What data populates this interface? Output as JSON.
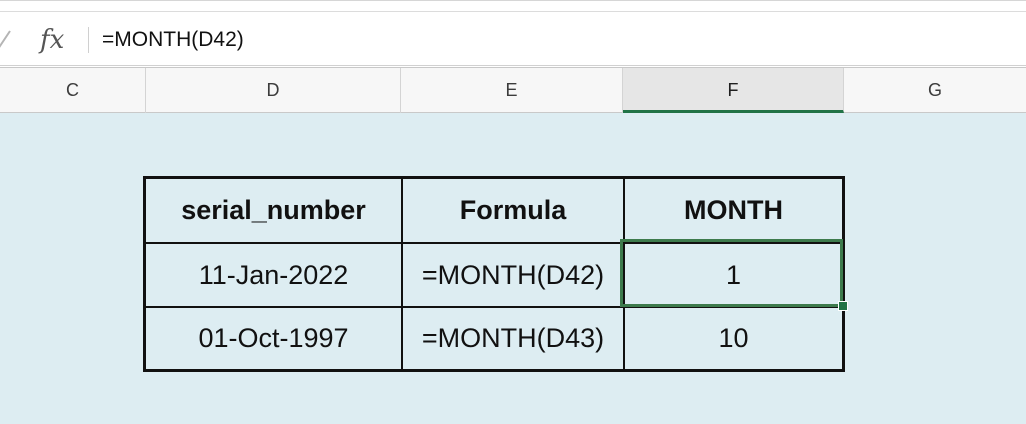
{
  "formula_bar": {
    "fx_label": "fx",
    "content": "=MONTH(D42)"
  },
  "columns": [
    {
      "letter": "C",
      "selected": false
    },
    {
      "letter": "D",
      "selected": false
    },
    {
      "letter": "E",
      "selected": false
    },
    {
      "letter": "F",
      "selected": true
    },
    {
      "letter": "G",
      "selected": false
    }
  ],
  "table": {
    "headers": [
      "serial_number",
      "Formula",
      "MONTH"
    ],
    "rows": [
      [
        "11-Jan-2022",
        "=MONTH(D42)",
        "1"
      ],
      [
        "01-Oct-1997",
        "=MONTH(D43)",
        "10"
      ]
    ]
  },
  "colors": {
    "accent": "#217346",
    "sheet_background": "#ddedf2"
  }
}
